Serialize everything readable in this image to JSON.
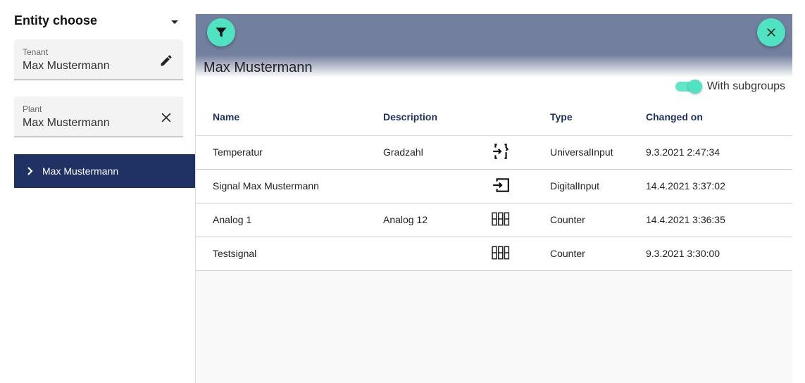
{
  "sidebar": {
    "title": "Entity choose",
    "tenant": {
      "label": "Tenant",
      "value": "Max Mustermann"
    },
    "plant": {
      "label": "Plant",
      "value": "Max Mustermann"
    },
    "nav_item": "Max Mustermann"
  },
  "main": {
    "heading": "Max Mustermann",
    "toggle": {
      "label": "With subgroups",
      "on": true
    },
    "columns": [
      "Name",
      "Description",
      "",
      "Type",
      "Changed on"
    ],
    "rows": [
      {
        "name": "Temperatur",
        "description": "Gradzahl",
        "icon": "universal-input-icon",
        "type": "UniversalInput",
        "changed": "9.3.2021 2:47:34"
      },
      {
        "name": "Signal Max Mustermann",
        "description": "",
        "icon": "digital-input-icon",
        "type": "DigitalInput",
        "changed": "14.4.2021 3:37:02"
      },
      {
        "name": "Analog 1",
        "description": "Analog 12",
        "icon": "counter-icon",
        "type": "Counter",
        "changed": "14.4.2021 3:36:35"
      },
      {
        "name": "Testsignal",
        "description": "",
        "icon": "counter-icon",
        "type": "Counter",
        "changed": "9.3.2021 3:30:00"
      }
    ]
  },
  "colors": {
    "accent": "#50e3c2",
    "nav": "#203264",
    "header": "#737f9e"
  }
}
